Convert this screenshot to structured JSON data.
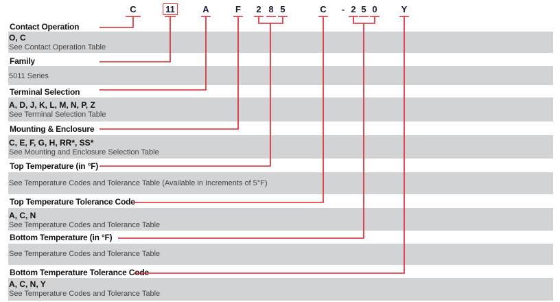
{
  "part_number": {
    "codes": [
      "C",
      "11",
      "A",
      "F",
      "2",
      "8",
      "5",
      "C",
      "-",
      "2",
      "5",
      "0",
      "Y"
    ]
  },
  "sections": [
    {
      "heading": "Contact Operation",
      "options": "O, C",
      "note": "See Contact Operation Table"
    },
    {
      "heading": "Family",
      "options": "",
      "note": "5011 Series"
    },
    {
      "heading": "Terminal Selection",
      "options": "A, D, J, K, L, M, N, P, Z",
      "note": "See Terminal Selection Table"
    },
    {
      "heading": "Mounting & Enclosure",
      "options": "C, E, F, G, H, RR*, SS*",
      "note": "See Mounting and Enclosure Selection  Table"
    },
    {
      "heading": "Top Temperature (in °F)",
      "options": "",
      "note": "See Temperature Codes and Tolerance Table (Available in Increments of 5°F)"
    },
    {
      "heading": "Top Temperature Tolerance Code",
      "options": "A, C, N",
      "note": "See Temperature Codes and Tolerance Table"
    },
    {
      "heading": "Bottom Temperature  (in °F)",
      "options": "",
      "note": "See Temperature Codes and Tolerance Table"
    },
    {
      "heading": "Bottom Temperature Tolerance Code",
      "options": "A, C, N, Y",
      "note": "See Temperature Codes and Tolerance Table"
    }
  ],
  "colors": {
    "line": "#e0202a",
    "band": "#d2d3d5"
  }
}
